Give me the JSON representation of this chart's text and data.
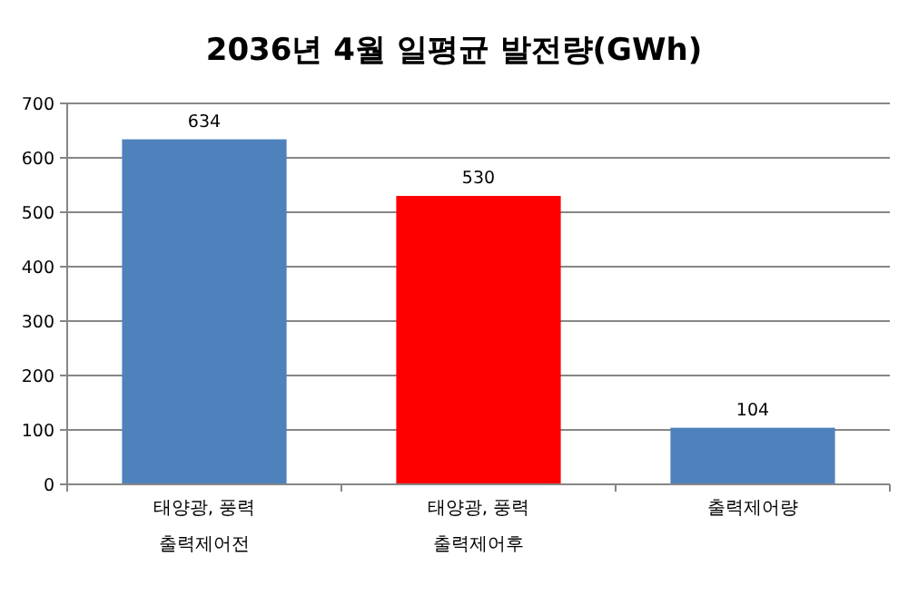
{
  "chart_data": {
    "type": "bar",
    "title": "2036년 4월 일평균 발전량(GWh)",
    "categories": [
      "태양광, 풍력\n출력제어전",
      "태양광, 풍력\n출력제어후",
      "출력제어량"
    ],
    "values": [
      634,
      530,
      104
    ],
    "colors": [
      "#4f81bd",
      "#ff0000",
      "#4f81bd"
    ],
    "ylim": [
      0,
      700
    ],
    "yticks": [
      0,
      100,
      200,
      300,
      400,
      500,
      600,
      700
    ],
    "grid": "y",
    "data_labels": true
  }
}
